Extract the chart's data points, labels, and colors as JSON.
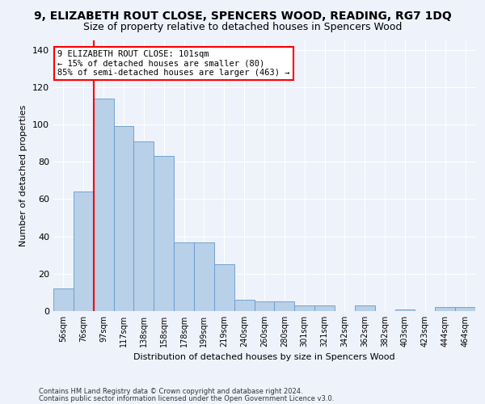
{
  "title": "9, ELIZABETH ROUT CLOSE, SPENCERS WOOD, READING, RG7 1DQ",
  "subtitle": "Size of property relative to detached houses in Spencers Wood",
  "xlabel": "Distribution of detached houses by size in Spencers Wood",
  "ylabel": "Number of detached properties",
  "footnote1": "Contains HM Land Registry data © Crown copyright and database right 2024.",
  "footnote2": "Contains public sector information licensed under the Open Government Licence v3.0.",
  "categories": [
    "56sqm",
    "76sqm",
    "97sqm",
    "117sqm",
    "138sqm",
    "158sqm",
    "178sqm",
    "199sqm",
    "219sqm",
    "240sqm",
    "260sqm",
    "280sqm",
    "301sqm",
    "321sqm",
    "342sqm",
    "362sqm",
    "382sqm",
    "403sqm",
    "423sqm",
    "444sqm",
    "464sqm"
  ],
  "values": [
    12,
    64,
    114,
    99,
    91,
    83,
    37,
    37,
    25,
    6,
    5,
    5,
    3,
    3,
    0,
    3,
    0,
    1,
    0,
    2,
    2
  ],
  "bar_color": "#b8d0e8",
  "bar_edge_color": "#6699cc",
  "annotation_line1": "9 ELIZABETH ROUT CLOSE: 101sqm",
  "annotation_line2": "← 15% of detached houses are smaller (80)",
  "annotation_line3": "85% of semi-detached houses are larger (463) →",
  "redline_bar_index": 2,
  "ylim": [
    0,
    145
  ],
  "yticks": [
    0,
    20,
    40,
    60,
    80,
    100,
    120,
    140
  ],
  "bg_color": "#eef2fb",
  "grid_color": "#ffffff",
  "title_fontsize": 10,
  "subtitle_fontsize": 9,
  "ylabel_fontsize": 8,
  "xlabel_fontsize": 8,
  "bar_width": 1.0
}
